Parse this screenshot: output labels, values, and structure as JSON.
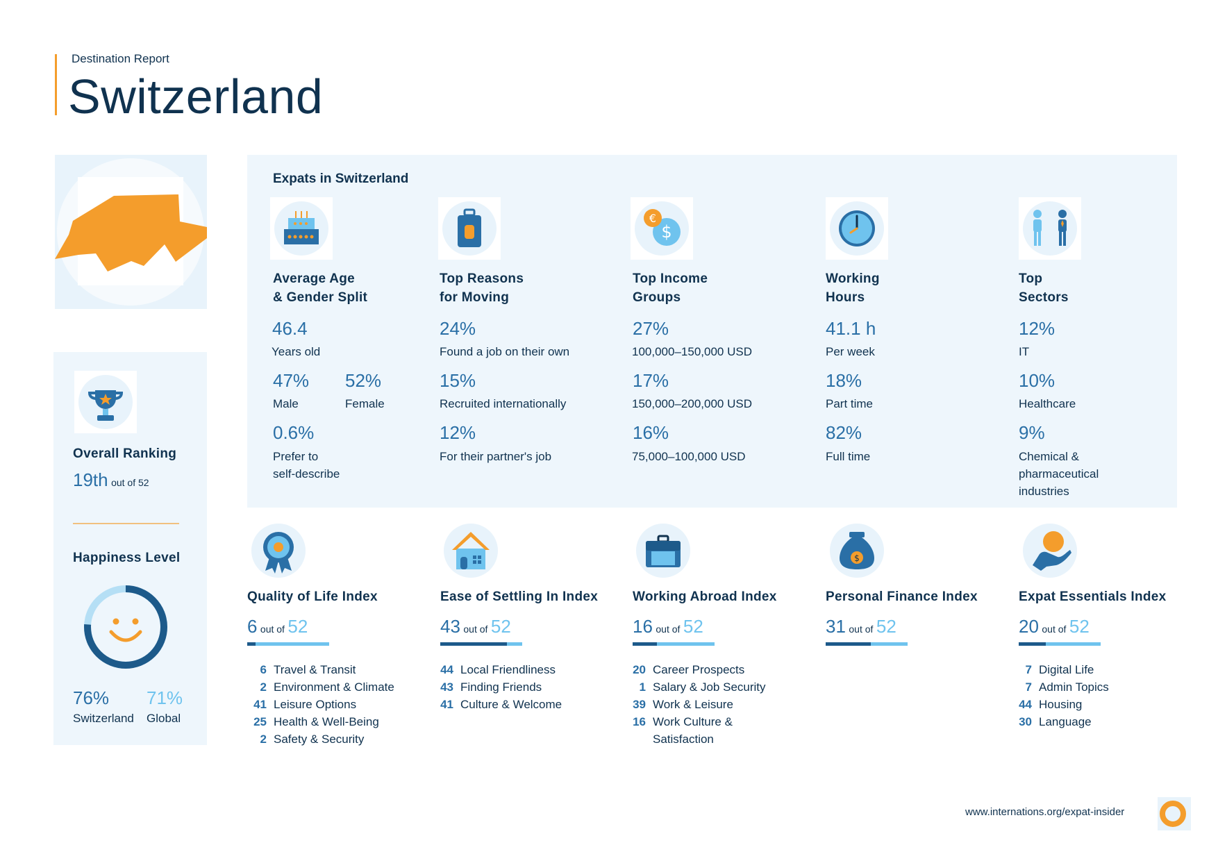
{
  "header": {
    "subtitle": "Destination Report",
    "title": "Switzerland"
  },
  "colors": {
    "accent_orange": "#f49d2c",
    "dark_navy": "#10324f",
    "mid_blue": "#2a6fa6",
    "light_blue": "#6fc3ee",
    "panel_bg": "#eef6fc"
  },
  "ranking": {
    "overall_label": "Overall Ranking",
    "overall_value": "19th",
    "overall_outof": "out of 52",
    "happiness_label": "Happiness Level",
    "happiness_local_value": "76%",
    "happiness_local_label": "Switzerland",
    "happiness_global_value": "71%",
    "happiness_global_label": "Global",
    "happiness_local_fraction": 0.76
  },
  "expats": {
    "title": "Expats in Switzerland",
    "columns": [
      {
        "icon": "birthday-cake-icon",
        "heading1": "Average Age",
        "heading2": "& Gender Split",
        "s1_val": "46.4",
        "s1_lbl": "Years old",
        "s2a_val": "47%",
        "s2a_lbl": "Male",
        "s2b_val": "52%",
        "s2b_lbl": "Female",
        "s3_val": "0.6%",
        "s3_lbl1": "Prefer to",
        "s3_lbl2": "self-describe"
      },
      {
        "icon": "suitcase-icon",
        "heading1": "Top Reasons",
        "heading2": "for Moving",
        "s1_val": "24%",
        "s1_lbl": "Found a job on their own",
        "s2_val": "15%",
        "s2_lbl": "Recruited internationally",
        "s3_val": "12%",
        "s3_lbl": "For their partner's job"
      },
      {
        "icon": "coins-icon",
        "heading1": "Top Income",
        "heading2": "Groups",
        "s1_val": "27%",
        "s1_lbl": "100,000–150,000 USD",
        "s2_val": "17%",
        "s2_lbl": "150,000–200,000 USD",
        "s3_val": "16%",
        "s3_lbl": "75,000–100,000 USD"
      },
      {
        "icon": "clock-icon",
        "heading1": "Working",
        "heading2": "Hours",
        "s1_val": "41.1 h",
        "s1_lbl": "Per week",
        "s2_val": "18%",
        "s2_lbl": "Part time",
        "s3_val": "82%",
        "s3_lbl": "Full time"
      },
      {
        "icon": "people-icon",
        "heading1": "Top",
        "heading2": "Sectors",
        "s1_val": "12%",
        "s1_lbl": "IT",
        "s2_val": "10%",
        "s2_lbl": "Healthcare",
        "s3_val": "9%",
        "s3_lbl1": "Chemical &",
        "s3_lbl2": "pharmaceutical",
        "s3_lbl3": "industries"
      }
    ]
  },
  "indices": [
    {
      "icon": "rosette-icon",
      "title": "Quality of Life Index",
      "rank": "6",
      "outof": "out of",
      "total": "52",
      "rank_fraction": 0.1,
      "rows": [
        {
          "num": "6",
          "label": "Travel & Transit"
        },
        {
          "num": "2",
          "label": "Environment & Climate"
        },
        {
          "num": "41",
          "label": "Leisure Options"
        },
        {
          "num": "25",
          "label": "Health & Well-Being"
        },
        {
          "num": "2",
          "label": "Safety & Security"
        }
      ]
    },
    {
      "icon": "house-icon",
      "title": "Ease of Settling In Index",
      "rank": "43",
      "outof": "out of",
      "total": "52",
      "rank_fraction": 0.81,
      "rows": [
        {
          "num": "44",
          "label": "Local Friendliness"
        },
        {
          "num": "43",
          "label": "Finding Friends"
        },
        {
          "num": "41",
          "label": "Culture & Welcome"
        }
      ]
    },
    {
      "icon": "briefcase-icon",
      "title": "Working Abroad Index",
      "rank": "16",
      "outof": "out of",
      "total": "52",
      "rank_fraction": 0.3,
      "rows": [
        {
          "num": "20",
          "label": "Career Prospects"
        },
        {
          "num": "1",
          "label": "Salary & Job Security"
        },
        {
          "num": "39",
          "label": "Work & Leisure"
        },
        {
          "num": "16",
          "label": "Work Culture &"
        },
        {
          "num": "",
          "label": "Satisfaction"
        }
      ]
    },
    {
      "icon": "money-bag-icon",
      "title": "Personal Finance Index",
      "rank": "31",
      "outof": "out of",
      "total": "52",
      "rank_fraction": 0.55,
      "rows": []
    },
    {
      "icon": "hand-coin-icon",
      "title": "Expat Essentials Index",
      "rank": "20",
      "outof": "out of",
      "total": "52",
      "rank_fraction": 0.33,
      "rows": [
        {
          "num": "7",
          "label": "Digital Life"
        },
        {
          "num": "7",
          "label": "Admin Topics"
        },
        {
          "num": "44",
          "label": "Housing"
        },
        {
          "num": "30",
          "label": "Language"
        }
      ]
    }
  ],
  "footer": {
    "url": "www.internations.org/expat-insider",
    "logo_icon": "internations-logo-icon"
  }
}
